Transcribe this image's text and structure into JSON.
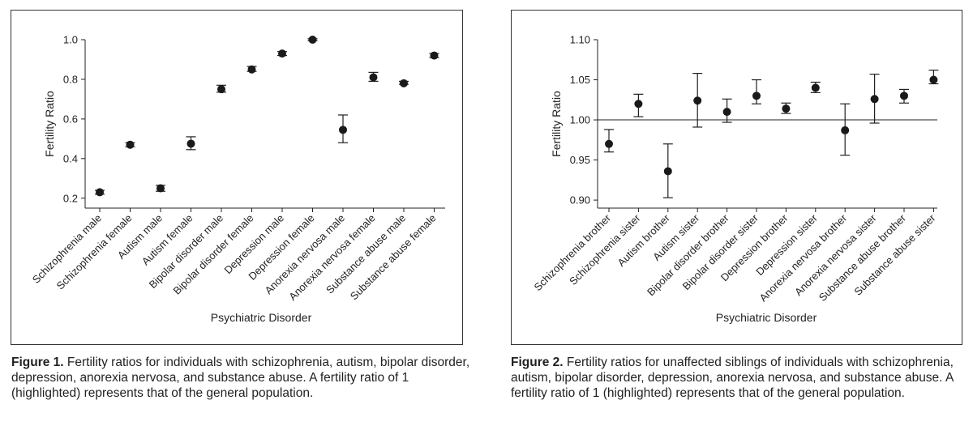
{
  "figure1": {
    "label": "Figure 1.",
    "caption": " Fertility ratios for individuals with schizophrenia, autism, bipolar disorder, depression, anorexia nervosa, and substance abuse. A fertility ratio of 1 (highlighted) represents that of the general population."
  },
  "figure2": {
    "label": "Figure 2.",
    "caption": " Fertility ratios for unaffected siblings of individuals with schizophrenia, autism, bipolar disorder, depression, anorexia nervosa, and substance abuse. A fertility ratio of 1 (highlighted) represents that of the general population."
  },
  "chart_data": [
    {
      "type": "scatter",
      "title": "",
      "xlabel": "Psychiatric Disorder",
      "ylabel": "Fertility Ratio",
      "ylim": [
        0.15,
        1.0
      ],
      "yticks": [
        0.2,
        0.4,
        0.6,
        0.8,
        1.0
      ],
      "ytick_labels": [
        "0.2",
        "0.4",
        "0.6",
        "0.8",
        "1.0"
      ],
      "reference_line": null,
      "categories": [
        "Schizophrenia male",
        "Schizophrenia female",
        "Autism male",
        "Autism female",
        "Bipolar disorder male",
        "Bipolar disorder female",
        "Depression male",
        "Depression female",
        "Anorexia nervosa male",
        "Anorexia nervosa female",
        "Substance abuse male",
        "Substance abuse female"
      ],
      "values": [
        0.23,
        0.47,
        0.25,
        0.475,
        0.75,
        0.85,
        0.93,
        1.0,
        0.545,
        0.81,
        0.78,
        0.92
      ],
      "ci_low": [
        0.22,
        0.46,
        0.235,
        0.445,
        0.735,
        0.84,
        0.92,
        0.995,
        0.48,
        0.79,
        0.775,
        0.91
      ],
      "ci_high": [
        0.24,
        0.48,
        0.265,
        0.51,
        0.77,
        0.865,
        0.94,
        1.005,
        0.62,
        0.835,
        0.79,
        0.93
      ]
    },
    {
      "type": "scatter",
      "title": "",
      "xlabel": "Psychiatric Disorder",
      "ylabel": "Fertility Ratio",
      "ylim": [
        0.89,
        1.1
      ],
      "yticks": [
        0.9,
        0.95,
        1.0,
        1.05,
        1.1
      ],
      "ytick_labels": [
        "0.90",
        "0.95",
        "1.00",
        "1.05",
        "1.10"
      ],
      "reference_line": 1.0,
      "categories": [
        "Schizophrenia brother",
        "Schizophrenia sister",
        "Autism brother",
        "Autism sister",
        "Bipolar disorder brother",
        "Bipolar disorder sister",
        "Depression brother",
        "Depression sister",
        "Anorexia nervosa brother",
        "Anorexia nervosa sister",
        "Substance abuse brother",
        "Substance abuse sister"
      ],
      "values": [
        0.97,
        1.02,
        0.936,
        1.024,
        1.01,
        1.03,
        1.014,
        1.04,
        0.987,
        1.026,
        1.03,
        1.05
      ],
      "ci_low": [
        0.96,
        1.004,
        0.903,
        0.991,
        0.997,
        1.02,
        1.008,
        1.034,
        0.956,
        0.996,
        1.021,
        1.045
      ],
      "ci_high": [
        0.988,
        1.032,
        0.97,
        1.058,
        1.026,
        1.05,
        1.021,
        1.047,
        1.02,
        1.057,
        1.038,
        1.062
      ]
    }
  ]
}
